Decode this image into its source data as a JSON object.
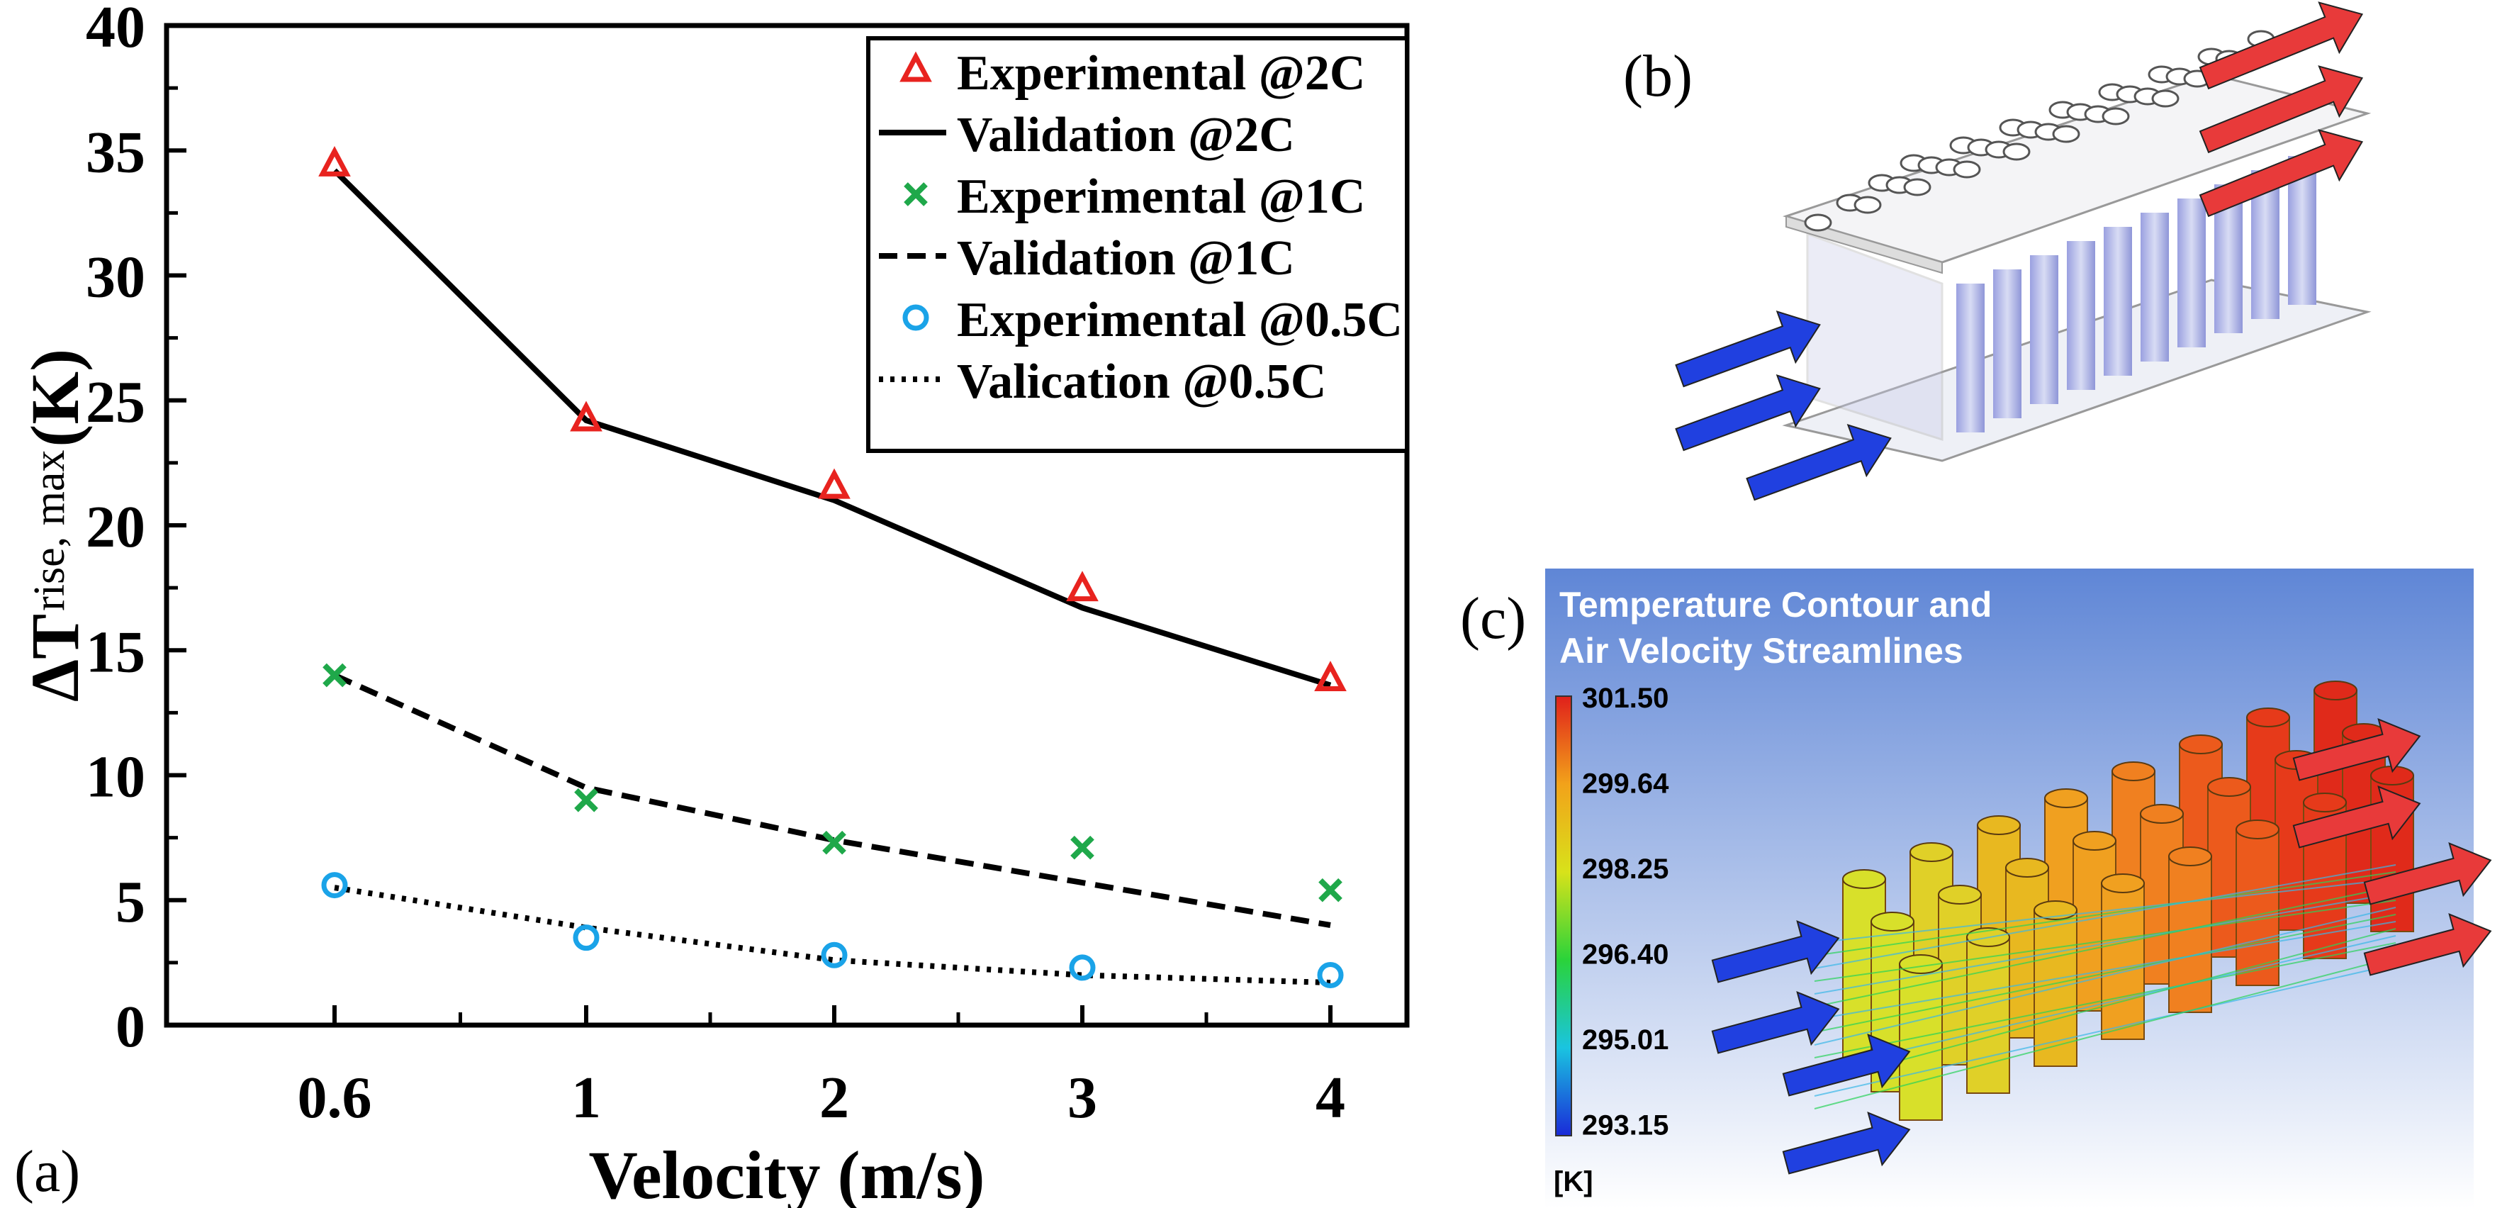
{
  "chart_data": {
    "type": "line",
    "panel_label": "(a)",
    "xlabel": "Velocity (m/s)",
    "ylabel_main": "ΔT",
    "ylabel_sub": "rise, max",
    "ylabel_unit": "(K)",
    "categories": [
      "0.6",
      "1",
      "2",
      "3",
      "4"
    ],
    "ylim": [
      0,
      40
    ],
    "yticks": [
      "0",
      "5",
      "10",
      "15",
      "20",
      "25",
      "30",
      "35",
      "40"
    ],
    "legend_position": "top-right",
    "series": [
      {
        "name": "Experimental @2C",
        "kind": "marker",
        "marker": "triangle",
        "color": "#e8231f",
        "values": [
          34.4,
          24.2,
          21.5,
          17.4,
          13.8
        ]
      },
      {
        "name": "Validation @2C",
        "kind": "line",
        "dash": "solid",
        "color": "#000000",
        "values": [
          34.2,
          24.2,
          21.0,
          16.7,
          13.6
        ]
      },
      {
        "name": "Experimental @1C",
        "kind": "marker",
        "marker": "x",
        "color": "#1fa84a",
        "values": [
          14.0,
          9.0,
          7.3,
          7.1,
          5.4
        ]
      },
      {
        "name": "Validation @1C",
        "kind": "line",
        "dash": "dashed",
        "color": "#000000",
        "values": [
          14.0,
          9.5,
          7.4,
          5.7,
          4.0
        ]
      },
      {
        "name": "Experimental @0.5C",
        "kind": "marker",
        "marker": "circle",
        "color": "#1aa3e8",
        "values": [
          5.6,
          3.5,
          2.8,
          2.3,
          2.0
        ]
      },
      {
        "name": "Valication @0.5C",
        "kind": "line",
        "dash": "dotted",
        "color": "#000000",
        "values": [
          5.5,
          3.9,
          2.6,
          2.0,
          1.7
        ]
      }
    ]
  },
  "panel_b": {
    "label": "(b)"
  },
  "panel_c": {
    "label": "(c)",
    "title_line1": "Temperature Contour and",
    "title_line2": "Air Velocity Streamlines",
    "colorbar_labels": [
      "301.50",
      "299.64",
      "298.25",
      "296.40",
      "295.01",
      "293.15"
    ],
    "colorbar_unit": "[K]"
  }
}
